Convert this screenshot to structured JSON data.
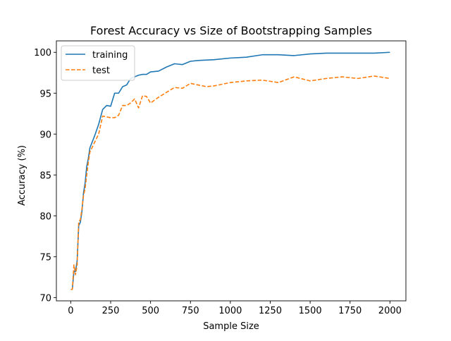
{
  "chart_data": {
    "type": "line",
    "title": "Forest Accuracy vs Size of Bootstrapping Samples",
    "xlabel": "Sample Size",
    "ylabel": "Accuracy (%)",
    "xlim": [
      -90,
      2100
    ],
    "ylim": [
      69.6,
      101.4
    ],
    "xticks": [
      0,
      250,
      500,
      750,
      1000,
      1250,
      1500,
      1750,
      2000
    ],
    "yticks": [
      70,
      75,
      80,
      85,
      90,
      95,
      100
    ],
    "grid": false,
    "legend": {
      "placement": "top-left"
    },
    "series": [
      {
        "name": "training",
        "color": "#1f77b4",
        "style": "solid",
        "points": [
          [
            0,
            71.0
          ],
          [
            10,
            71.0
          ],
          [
            20,
            73.2
          ],
          [
            30,
            73.2
          ],
          [
            40,
            74.5
          ],
          [
            50,
            78.8
          ],
          [
            60,
            79.2
          ],
          [
            70,
            80.5
          ],
          [
            80,
            82.8
          ],
          [
            90,
            84.0
          ],
          [
            100,
            86.0
          ],
          [
            110,
            87.0
          ],
          [
            120,
            88.3
          ],
          [
            150,
            89.8
          ],
          [
            175,
            91.2
          ],
          [
            200,
            93.0
          ],
          [
            225,
            93.5
          ],
          [
            250,
            93.4
          ],
          [
            275,
            95.0
          ],
          [
            300,
            95.0
          ],
          [
            325,
            95.8
          ],
          [
            350,
            96.0
          ],
          [
            375,
            96.8
          ],
          [
            400,
            97.0
          ],
          [
            425,
            97.2
          ],
          [
            450,
            97.3
          ],
          [
            475,
            97.3
          ],
          [
            500,
            97.6
          ],
          [
            550,
            97.7
          ],
          [
            600,
            98.2
          ],
          [
            650,
            98.6
          ],
          [
            700,
            98.5
          ],
          [
            750,
            98.9
          ],
          [
            800,
            99.0
          ],
          [
            900,
            99.1
          ],
          [
            1000,
            99.3
          ],
          [
            1100,
            99.4
          ],
          [
            1200,
            99.7
          ],
          [
            1300,
            99.7
          ],
          [
            1400,
            99.6
          ],
          [
            1500,
            99.8
          ],
          [
            1600,
            99.9
          ],
          [
            1700,
            99.9
          ],
          [
            1800,
            99.9
          ],
          [
            1900,
            99.9
          ],
          [
            2000,
            100.0
          ]
        ]
      },
      {
        "name": "test",
        "color": "#ff7f0e",
        "style": "dashed",
        "points": [
          [
            0,
            71.0
          ],
          [
            10,
            71.0
          ],
          [
            20,
            74.0
          ],
          [
            30,
            72.8
          ],
          [
            40,
            74.0
          ],
          [
            50,
            79.3
          ],
          [
            60,
            79.5
          ],
          [
            70,
            80.8
          ],
          [
            80,
            82.5
          ],
          [
            90,
            83.3
          ],
          [
            100,
            85.0
          ],
          [
            110,
            86.5
          ],
          [
            120,
            87.8
          ],
          [
            150,
            89.0
          ],
          [
            175,
            90.0
          ],
          [
            200,
            92.2
          ],
          [
            225,
            92.1
          ],
          [
            250,
            92.0
          ],
          [
            275,
            92.0
          ],
          [
            300,
            92.3
          ],
          [
            325,
            93.5
          ],
          [
            350,
            93.5
          ],
          [
            375,
            93.8
          ],
          [
            400,
            94.3
          ],
          [
            425,
            93.2
          ],
          [
            450,
            94.7
          ],
          [
            475,
            94.6
          ],
          [
            500,
            93.8
          ],
          [
            550,
            94.5
          ],
          [
            600,
            95.1
          ],
          [
            650,
            95.7
          ],
          [
            700,
            95.6
          ],
          [
            750,
            96.2
          ],
          [
            800,
            96.0
          ],
          [
            850,
            95.8
          ],
          [
            900,
            95.9
          ],
          [
            1000,
            96.3
          ],
          [
            1100,
            96.5
          ],
          [
            1200,
            96.6
          ],
          [
            1300,
            96.3
          ],
          [
            1400,
            97.0
          ],
          [
            1500,
            96.5
          ],
          [
            1600,
            96.8
          ],
          [
            1700,
            97.0
          ],
          [
            1800,
            96.8
          ],
          [
            1900,
            97.1
          ],
          [
            2000,
            96.8
          ]
        ]
      }
    ]
  }
}
